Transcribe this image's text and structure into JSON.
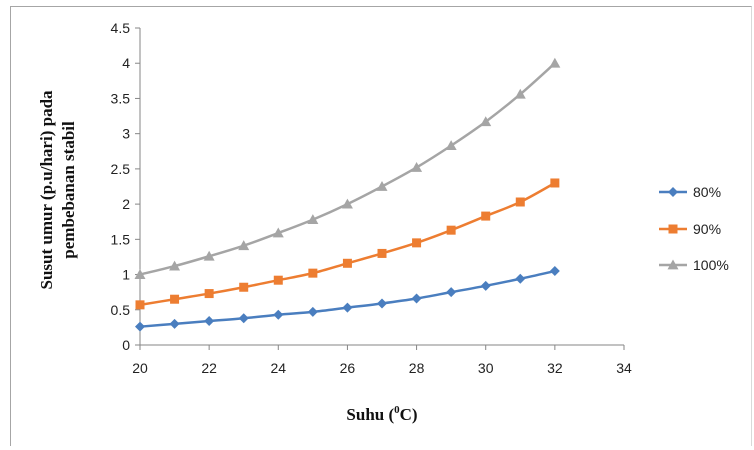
{
  "chart_data": {
    "type": "line",
    "xlabel": "Suhu (",
    "xlabel_sup": "0",
    "xlabel_end": "C)",
    "ylabel_line1": "Susut umur (p.u/hari) pada",
    "ylabel_line2": "pembebanan stabil",
    "xlim": [
      20,
      34
    ],
    "ylim": [
      0,
      4.5
    ],
    "xticks": [
      "20",
      "22",
      "24",
      "26",
      "28",
      "30",
      "32",
      "34"
    ],
    "yticks": [
      "0",
      "0.5",
      "1",
      "1.5",
      "2",
      "2.5",
      "3",
      "3.5",
      "4",
      "4.5"
    ],
    "grid": false,
    "legend_position": "right",
    "x": [
      20,
      21,
      22,
      23,
      24,
      25,
      26,
      27,
      28,
      29,
      30,
      31,
      32
    ],
    "series": [
      {
        "name": "80%",
        "color": "#4a7ebf",
        "marker": "diamond",
        "values": [
          0.26,
          0.3,
          0.34,
          0.38,
          0.43,
          0.47,
          0.53,
          0.59,
          0.66,
          0.75,
          0.84,
          0.94,
          1.05
        ]
      },
      {
        "name": "90%",
        "color": "#ed7d31",
        "marker": "square",
        "values": [
          0.57,
          0.65,
          0.73,
          0.82,
          0.92,
          1.02,
          1.16,
          1.3,
          1.45,
          1.63,
          1.83,
          2.03,
          2.3
        ]
      },
      {
        "name": "100%",
        "color": "#a5a5a5",
        "marker": "triangle",
        "values": [
          1.0,
          1.12,
          1.26,
          1.41,
          1.59,
          1.78,
          2.0,
          2.25,
          2.52,
          2.83,
          3.17,
          3.56,
          4.0
        ]
      }
    ]
  }
}
